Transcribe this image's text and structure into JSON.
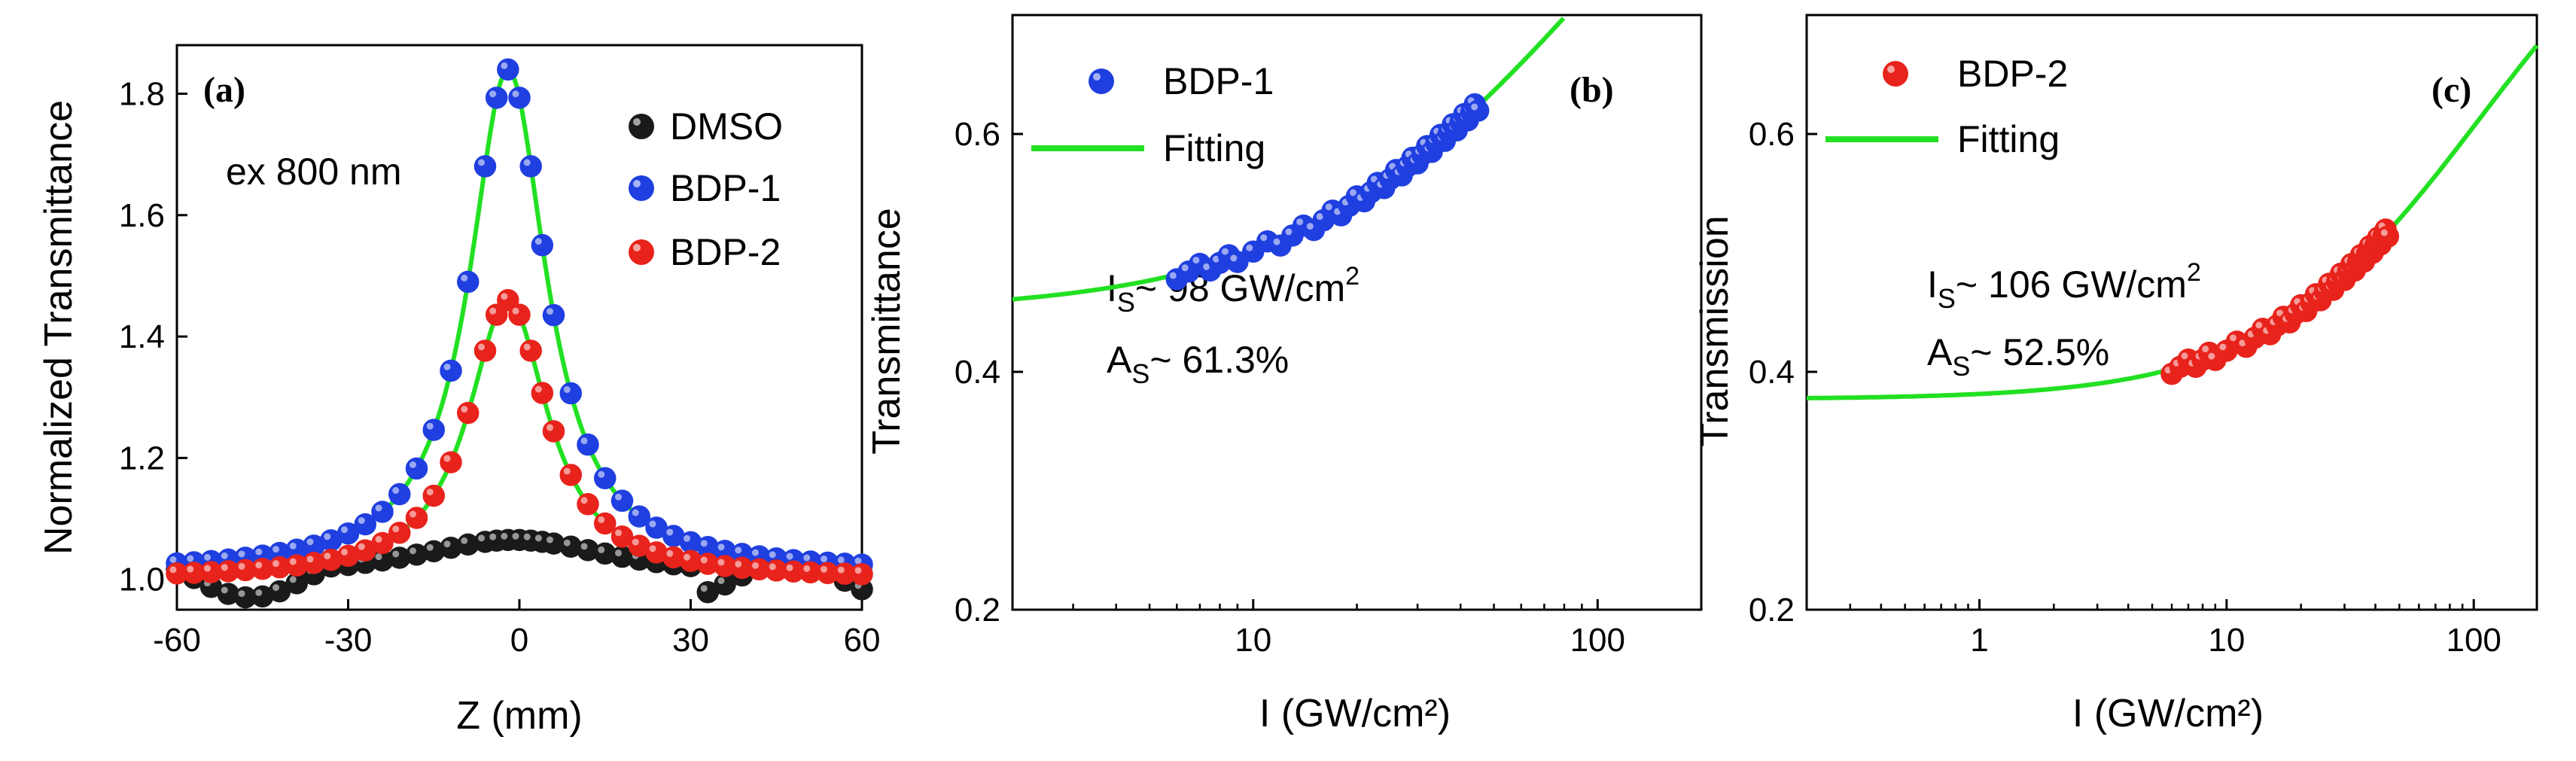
{
  "chart_data": [
    {
      "panel": "(a)",
      "type": "scatter",
      "xlabel": "Z (mm)",
      "ylabel": "Normalized Transmittance",
      "xlim": [
        -60,
        60
      ],
      "ylim": [
        0.95,
        1.88
      ],
      "xticks": [
        -60,
        -30,
        0,
        30,
        60
      ],
      "xtick_labels": [
        "-60",
        "-30",
        "0",
        "30",
        "60"
      ],
      "yticks": [
        1.0,
        1.2,
        1.4,
        1.6,
        1.8
      ],
      "ytick_labels": [
        "1.0",
        "1.2",
        "1.4",
        "1.6",
        "1.8"
      ],
      "annotation": "ex 800 nm",
      "legend": [
        "DMSO",
        "BDP-1",
        "BDP-2"
      ],
      "series": [
        {
          "name": "DMSO",
          "color": "#1a1a1a",
          "model": {
            "base": 1.0,
            "peak": 0.065,
            "center": -1,
            "width": 22
          }
        },
        {
          "name": "BDP-1",
          "color": "#1f3fe0",
          "model": {
            "base": 1.01,
            "peak": 0.83,
            "center": -2,
            "width": 8.2
          }
        },
        {
          "name": "BDP-2",
          "color": "#e8231c",
          "model": {
            "base": 1.0,
            "peak": 0.46,
            "center": -2,
            "width": 8.5
          }
        }
      ],
      "fit_color": "#22e022",
      "x": [
        -60,
        -57,
        -54,
        -51,
        -48,
        -45,
        -42,
        -39,
        -36,
        -33,
        -30,
        -27,
        -24,
        -21,
        -18,
        -15,
        -12,
        -9,
        -6,
        -4,
        -2,
        0,
        2,
        4,
        6,
        9,
        12,
        15,
        18,
        21,
        24,
        27,
        30,
        33,
        36,
        39,
        42,
        45,
        48,
        51,
        54,
        57,
        60
      ]
    },
    {
      "panel": "(b)",
      "type": "scatter",
      "xscale": "log",
      "xlabel": "I (GW/cm²)",
      "ylabel": "Transmittance",
      "xlim": [
        2,
        200
      ],
      "ylim": [
        0.2,
        0.7
      ],
      "xticks": [
        10,
        100
      ],
      "xtick_labels": [
        "10",
        "100"
      ],
      "yticks": [
        0.2,
        0.4,
        0.6
      ],
      "ytick_labels": [
        "0.2",
        "0.4",
        "0.6"
      ],
      "legend": [
        "BDP-1",
        "Fitting"
      ],
      "annotation_is": "I",
      "annotation_is_sub": "S",
      "annotation_is_rest": "~ 98 GW/cm",
      "annotation_is_sup": "2",
      "annotation_as": "A",
      "annotation_as_sub": "S",
      "annotation_as_rest": "~ 61.3%",
      "series": [
        {
          "name": "BDP-1",
          "color": "#1f3fe0",
          "x": [
            6,
            6.5,
            7,
            7.5,
            8,
            8.5,
            9,
            10,
            11,
            12,
            13,
            14,
            15,
            16,
            17,
            18,
            19,
            20,
            21,
            22,
            23,
            24,
            25,
            26,
            27,
            28,
            29,
            30,
            31,
            32,
            33,
            34,
            35,
            36,
            37,
            38,
            39,
            40,
            41,
            42,
            43,
            44,
            45
          ]
        }
      ],
      "fit": {
        "name": "Fitting",
        "color": "#22e022",
        "Is": 98,
        "As": 0.613,
        "alpha": 0.45
      }
    },
    {
      "panel": "(c)",
      "type": "scatter",
      "xscale": "log",
      "xlabel": "I (GW/cm²)",
      "ylabel": "Transmission",
      "xlim": [
        0.2,
        180
      ],
      "ylim": [
        0.2,
        0.7
      ],
      "xticks": [
        1,
        10,
        100
      ],
      "xtick_labels": [
        "1",
        "10",
        "100"
      ],
      "yticks": [
        0.2,
        0.4,
        0.6
      ],
      "ytick_labels": [
        "0.2",
        "0.4",
        "0.6"
      ],
      "legend": [
        "BDP-2",
        "Fitting"
      ],
      "annotation_is": "I",
      "annotation_is_sub": "S",
      "annotation_is_rest": "~ 106 GW/cm",
      "annotation_is_sup": "2",
      "annotation_as": "A",
      "annotation_as_sub": "S",
      "annotation_as_rest": "~ 52.5%",
      "series": [
        {
          "name": "BDP-2",
          "color": "#e8231c",
          "x": [
            6,
            6.5,
            7,
            7.5,
            8,
            8.5,
            9,
            10,
            11,
            12,
            13,
            14,
            15,
            16,
            17,
            18,
            19,
            20,
            21,
            22,
            23,
            24,
            25,
            26,
            27,
            28,
            29,
            30,
            31,
            32,
            33,
            34,
            35,
            36,
            37,
            38,
            39,
            40,
            41,
            42,
            43,
            44,
            45
          ]
        }
      ],
      "fit": {
        "name": "Fitting",
        "color": "#22e022",
        "Is": 106,
        "As": 0.525,
        "alpha": 0.377
      }
    }
  ]
}
